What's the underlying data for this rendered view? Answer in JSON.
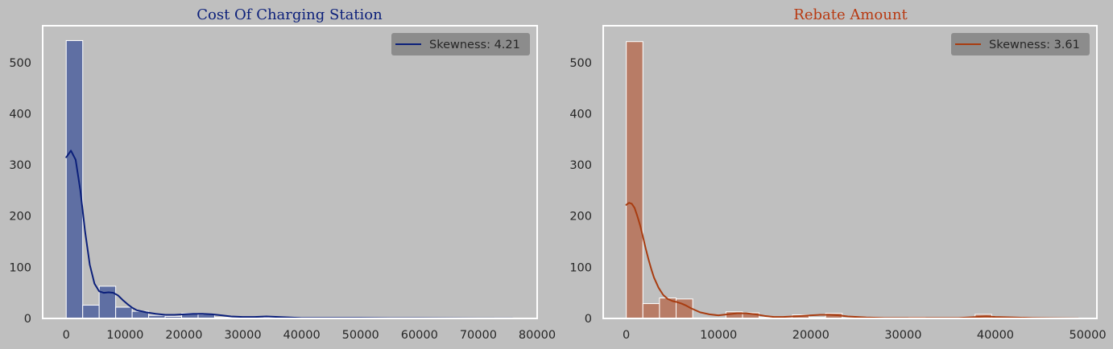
{
  "chart_data": [
    {
      "type": "histogram",
      "title": "Cost Of Charging Station",
      "title_color": "#0b1f7a",
      "bar_color": "#5f6fa3",
      "line_color": "#0b1f7a",
      "xlabel": "",
      "ylabel": "",
      "xlim": [
        -4000,
        80000
      ],
      "ylim": [
        0,
        572
      ],
      "xticks": [
        0,
        10000,
        20000,
        30000,
        40000,
        50000,
        60000,
        70000,
        80000
      ],
      "yticks": [
        0,
        100,
        200,
        300,
        400,
        500
      ],
      "bin_edges": [
        0,
        2800,
        5600,
        8400,
        11200,
        14000,
        16800,
        19600,
        22400,
        25200,
        28000,
        30800,
        33600,
        36400,
        39200,
        42000,
        44800,
        47600,
        50400,
        53200,
        56000,
        58800,
        61600,
        64400,
        67200,
        70000,
        72800,
        75600
      ],
      "counts": [
        543,
        26,
        63,
        22,
        14,
        6,
        4,
        10,
        8,
        2,
        1,
        1,
        2,
        1,
        1,
        0,
        0,
        0,
        0,
        0,
        0,
        0,
        0,
        0,
        0,
        0,
        1
      ],
      "kde": {
        "x": [
          0,
          800,
          1600,
          2400,
          3200,
          4000,
          4800,
          5600,
          6400,
          7200,
          8000,
          8800,
          9600,
          10400,
          11200,
          12000,
          13600,
          15200,
          16800,
          18400,
          20000,
          21600,
          23200,
          24800,
          26400,
          28000,
          30000,
          32000,
          34000,
          36000,
          38000,
          40000,
          45000,
          50000,
          55000,
          60000,
          65000,
          70000,
          76000
        ],
        "y": [
          315,
          328,
          310,
          250,
          170,
          105,
          68,
          53,
          50,
          51,
          50,
          45,
          36,
          28,
          21,
          16,
          12,
          9,
          7,
          7,
          8,
          9,
          9,
          8,
          6,
          4,
          3,
          3,
          4,
          3,
          2,
          1,
          1,
          1,
          0.5,
          0.5,
          0.3,
          0.2,
          0.1
        ]
      },
      "legend": {
        "label": "Skewness: 4.21",
        "placement": "top-right"
      }
    },
    {
      "type": "histogram",
      "title": "Rebate Amount",
      "title_color": "#b83a12",
      "bar_color": "#b87c66",
      "line_color": "#a83c10",
      "xlabel": "",
      "ylabel": "",
      "xlim": [
        -2500,
        51000
      ],
      "ylim": [
        0,
        572
      ],
      "xticks": [
        0,
        10000,
        20000,
        30000,
        40000,
        50000
      ],
      "yticks": [
        0,
        100,
        200,
        300,
        400,
        500
      ],
      "bin_edges": [
        0,
        1800,
        3600,
        5400,
        7200,
        9000,
        10800,
        12600,
        14400,
        16200,
        18000,
        19800,
        21600,
        23400,
        25200,
        27000,
        28800,
        30600,
        32400,
        34200,
        36000,
        37800,
        39600,
        41400,
        43200,
        45000,
        46800,
        48600
      ],
      "counts": [
        541,
        29,
        40,
        38,
        1,
        0,
        13,
        11,
        2,
        1,
        7,
        2,
        10,
        1,
        0,
        0,
        1,
        2,
        0,
        0,
        0,
        8,
        0,
        0,
        0,
        0,
        0
      ],
      "kde": {
        "x": [
          0,
          300,
          600,
          900,
          1200,
          1500,
          1800,
          2100,
          2400,
          2700,
          3000,
          3500,
          4000,
          4500,
          5000,
          5500,
          6000,
          6500,
          7000,
          8000,
          9000,
          10000,
          11000,
          12000,
          13000,
          14000,
          15000,
          16000,
          17000,
          18000,
          19000,
          20000,
          21000,
          22000,
          23000,
          24000,
          26000,
          28000,
          30000,
          32000,
          34000,
          36000,
          38000,
          39000,
          40000,
          42000,
          44000,
          46000,
          49000
        ],
        "y": [
          222,
          226,
          224,
          216,
          200,
          182,
          160,
          137,
          116,
          97,
          80,
          60,
          46,
          38,
          34,
          32,
          29,
          25,
          20,
          12,
          8,
          6,
          8,
          10,
          10,
          8,
          5,
          3,
          3,
          4,
          5,
          6,
          7,
          7,
          6,
          4,
          2,
          1,
          1,
          1,
          1,
          1,
          3,
          4,
          3,
          2,
          1,
          0.5,
          0.2
        ]
      },
      "legend": {
        "label": "Skewness: 3.61",
        "placement": "top-right"
      }
    }
  ]
}
